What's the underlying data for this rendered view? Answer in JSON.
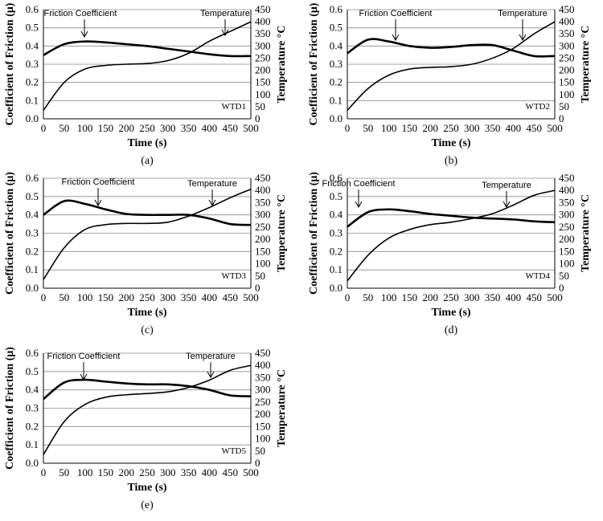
{
  "chart_data": [
    {
      "type": "line",
      "panel_label": "(a)",
      "sample_label": "WTD1",
      "xlabel": "Time (s)",
      "ylabel": "Coefficient of Friction (μ)",
      "y2label": "Temperature °C",
      "xlim": [
        0,
        500
      ],
      "ylim": [
        0,
        0.6
      ],
      "y2lim": [
        0,
        450
      ],
      "x_ticks": [
        "0",
        "50",
        "100",
        "150",
        "200",
        "250",
        "300",
        "350",
        "400",
        "450",
        "500"
      ],
      "y_ticks": [
        "0.0",
        "0.1",
        "0.2",
        "0.3",
        "0.4",
        "0.5",
        "0.6"
      ],
      "y2_ticks": [
        "0",
        "50",
        "100",
        "150",
        "200",
        "250",
        "300",
        "350",
        "400",
        "450"
      ],
      "grid": true,
      "annotations": {
        "friction": "Friction Coefficient",
        "temperature": "Temperature"
      },
      "series": [
        {
          "name": "Friction Coefficient",
          "axis": "left",
          "x": [
            0,
            50,
            100,
            150,
            200,
            250,
            300,
            350,
            400,
            450,
            500
          ],
          "values": [
            0.35,
            0.41,
            0.425,
            0.42,
            0.41,
            0.4,
            0.385,
            0.37,
            0.355,
            0.345,
            0.345
          ]
        },
        {
          "name": "Temperature",
          "axis": "right",
          "x": [
            0,
            50,
            100,
            150,
            200,
            250,
            300,
            350,
            400,
            450,
            500
          ],
          "values": [
            35,
            150,
            205,
            220,
            225,
            228,
            240,
            270,
            320,
            360,
            400
          ]
        }
      ]
    },
    {
      "type": "line",
      "panel_label": "(b)",
      "sample_label": "WTD2",
      "xlabel": "Time (s)",
      "ylabel": "Coefficient of Friction (μ)",
      "y2label": "Temperature °C",
      "xlim": [
        0,
        500
      ],
      "ylim": [
        0,
        0.6
      ],
      "y2lim": [
        0,
        450
      ],
      "x_ticks": [
        "0",
        "50",
        "100",
        "150",
        "200",
        "250",
        "300",
        "350",
        "400",
        "450",
        "500"
      ],
      "y_ticks": [
        "0.0",
        "0.1",
        "0.2",
        "0.3",
        "0.4",
        "0.5",
        "0.6"
      ],
      "y2_ticks": [
        "0",
        "50",
        "100",
        "150",
        "200",
        "250",
        "300",
        "350",
        "400",
        "450"
      ],
      "grid": true,
      "annotations": {
        "friction": "Friction Coefficient",
        "temperature": "Temperature"
      },
      "series": [
        {
          "name": "Friction Coefficient",
          "axis": "left",
          "x": [
            0,
            50,
            100,
            150,
            200,
            250,
            300,
            350,
            400,
            450,
            500
          ],
          "values": [
            0.36,
            0.435,
            0.425,
            0.4,
            0.39,
            0.395,
            0.405,
            0.405,
            0.375,
            0.345,
            0.345
          ]
        },
        {
          "name": "Temperature",
          "axis": "right",
          "x": [
            0,
            50,
            100,
            150,
            200,
            250,
            300,
            350,
            400,
            450,
            500
          ],
          "values": [
            35,
            125,
            180,
            205,
            212,
            215,
            225,
            250,
            290,
            350,
            400
          ]
        }
      ]
    },
    {
      "type": "line",
      "panel_label": "(c)",
      "sample_label": "WTD3",
      "xlabel": "Time (s)",
      "ylabel": "Coefficient of Friction (μ)",
      "y2label": "Temperature °C",
      "xlim": [
        0,
        500
      ],
      "ylim": [
        0,
        0.6
      ],
      "y2lim": [
        0,
        450
      ],
      "x_ticks": [
        "0",
        "50",
        "100",
        "150",
        "200",
        "250",
        "300",
        "350",
        "400",
        "450",
        "500"
      ],
      "y_ticks": [
        "0.0",
        "0.1",
        "0.2",
        "0.3",
        "0.4",
        "0.5",
        "0.6"
      ],
      "y2_ticks": [
        "0",
        "50",
        "100",
        "150",
        "200",
        "250",
        "300",
        "350",
        "400",
        "450"
      ],
      "grid": true,
      "annotations": {
        "friction": "Friction Coefficient",
        "temperature": "Temperature"
      },
      "series": [
        {
          "name": "Friction Coefficient",
          "axis": "left",
          "x": [
            0,
            50,
            100,
            150,
            200,
            250,
            300,
            350,
            400,
            450,
            500
          ],
          "values": [
            0.4,
            0.475,
            0.46,
            0.43,
            0.405,
            0.4,
            0.4,
            0.4,
            0.38,
            0.35,
            0.345
          ]
        },
        {
          "name": "Temperature",
          "axis": "right",
          "x": [
            0,
            50,
            100,
            150,
            200,
            250,
            300,
            350,
            400,
            450,
            500
          ],
          "values": [
            35,
            165,
            240,
            260,
            265,
            265,
            270,
            295,
            330,
            370,
            405
          ]
        }
      ]
    },
    {
      "type": "line",
      "panel_label": "(d)",
      "sample_label": "WTD4",
      "xlabel": "Time (s)",
      "ylabel": "Coefficient of Friction (μ)",
      "y2label": "Temperature °C",
      "xlim": [
        0,
        500
      ],
      "ylim": [
        0,
        0.6
      ],
      "y2lim": [
        0,
        450
      ],
      "x_ticks": [
        "0",
        "50",
        "100",
        "150",
        "200",
        "250",
        "300",
        "350",
        "400",
        "450",
        "500"
      ],
      "y_ticks": [
        "0.0",
        "0.1",
        "0.2",
        "0.3",
        "0.4",
        "0.5",
        "0.6"
      ],
      "y2_ticks": [
        "0",
        "50",
        "100",
        "150",
        "200",
        "250",
        "300",
        "350",
        "400",
        "450"
      ],
      "grid": true,
      "annotations": {
        "friction": "Friction Coefficient",
        "temperature": "Temperature"
      },
      "series": [
        {
          "name": "Friction Coefficient",
          "axis": "left",
          "x": [
            0,
            50,
            100,
            150,
            200,
            250,
            300,
            350,
            400,
            450,
            500
          ],
          "values": [
            0.335,
            0.415,
            0.43,
            0.42,
            0.405,
            0.395,
            0.385,
            0.38,
            0.375,
            0.365,
            0.36
          ]
        },
        {
          "name": "Temperature",
          "axis": "right",
          "x": [
            0,
            50,
            100,
            150,
            200,
            250,
            300,
            350,
            400,
            450,
            500
          ],
          "values": [
            30,
            135,
            205,
            240,
            260,
            270,
            285,
            305,
            340,
            380,
            400
          ]
        }
      ]
    },
    {
      "type": "line",
      "panel_label": "(e)",
      "sample_label": "WTD5",
      "xlabel": "Time (s)",
      "ylabel": "Coefficient of Friction (μ)",
      "y2label": "Temperature °C",
      "xlim": [
        0,
        500
      ],
      "ylim": [
        0,
        0.6
      ],
      "y2lim": [
        0,
        450
      ],
      "x_ticks": [
        "0",
        "50",
        "100",
        "150",
        "200",
        "250",
        "300",
        "350",
        "400",
        "450",
        "500"
      ],
      "y_ticks": [
        "0.0",
        "0.1",
        "0.2",
        "0.3",
        "0.4",
        "0.5",
        "0.6"
      ],
      "y2_ticks": [
        "0",
        "50",
        "100",
        "150",
        "200",
        "250",
        "300",
        "350",
        "400",
        "450"
      ],
      "grid": true,
      "annotations": {
        "friction": "Friction Coefficient",
        "temperature": "Temperature"
      },
      "series": [
        {
          "name": "Friction Coefficient",
          "axis": "left",
          "x": [
            0,
            50,
            100,
            150,
            200,
            250,
            300,
            350,
            400,
            450,
            500
          ],
          "values": [
            0.35,
            0.44,
            0.455,
            0.445,
            0.435,
            0.43,
            0.43,
            0.42,
            0.4,
            0.37,
            0.365
          ]
        },
        {
          "name": "Temperature",
          "axis": "right",
          "x": [
            0,
            50,
            100,
            150,
            200,
            250,
            300,
            350,
            400,
            450,
            500
          ],
          "values": [
            35,
            170,
            240,
            270,
            280,
            285,
            292,
            310,
            340,
            380,
            400
          ]
        }
      ]
    }
  ]
}
